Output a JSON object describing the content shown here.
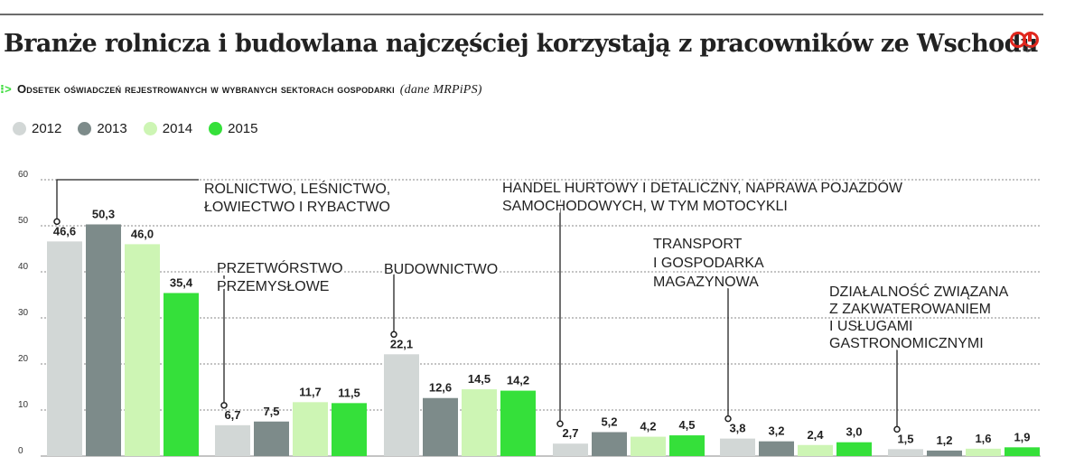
{
  "title": "Branże rolnicza i budowlana najczęściej korzystają z pracowników ze Wschodu",
  "subtitle": {
    "marker": "⁝>",
    "text": "Odsetek oświadczeń rejestrowanych w wybranych sektorach gospodarki",
    "source": "(dane MRPiPS)"
  },
  "logo": {
    "text": "ŁR",
    "color": "#e0261d"
  },
  "colors": {
    "2012": "#d2d7d6",
    "2013": "#7d8b8a",
    "2014": "#cdf5b4",
    "2015": "#35e03a"
  },
  "chart_data": {
    "type": "bar",
    "ylim": [
      0,
      60
    ],
    "yticks": [
      "0",
      "10",
      "20",
      "30",
      "40",
      "50",
      "60"
    ],
    "series_names": [
      "2012",
      "2013",
      "2014",
      "2015"
    ],
    "categories": [
      {
        "name": "ROLNICTWO, LEŚNICTWO, ŁOWIECTWO I RYBACTWO",
        "lines": [
          "ROLNICTWO, LEŚNICTWO,",
          "ŁOWIECTWO I RYBACTWO"
        ],
        "values": [
          46.6,
          50.3,
          46.0,
          35.4
        ],
        "labels": [
          "46,6",
          "50,3",
          "46,0",
          "35,4"
        ]
      },
      {
        "name": "PRZETWÓRSTWO PRZEMYSŁOWE",
        "lines": [
          "PRZETWÓRSTWO",
          "PRZEMYSŁOWE"
        ],
        "values": [
          6.7,
          7.5,
          11.7,
          11.5
        ],
        "labels": [
          "6,7",
          "7,5",
          "11,7",
          "11,5"
        ]
      },
      {
        "name": "BUDOWNICTWO",
        "lines": [
          "BUDOWNICTWO"
        ],
        "values": [
          22.1,
          12.6,
          14.5,
          14.2
        ],
        "labels": [
          "22,1",
          "12,6",
          "14,5",
          "14,2"
        ]
      },
      {
        "name": "HANDEL HURTOWY I DETALICZNY, NAPRAWA POJAZDÓW SAMOCHODOWYCH, W TYM MOTOCYKLI",
        "lines": [
          "HANDEL HURTOWY I DETALICZNY, NAPRAWA POJAZDÓW",
          "SAMOCHODOWYCH, W TYM MOTOCYKLI"
        ],
        "values": [
          2.7,
          5.2,
          4.2,
          4.5
        ],
        "labels": [
          "2,7",
          "5,2",
          "4,2",
          "4,5"
        ]
      },
      {
        "name": "TRANSPORT I GOSPODARKA MAGAZYNOWA",
        "lines": [
          "TRANSPORT",
          "I GOSPODARKA",
          "MAGAZYNOWA"
        ],
        "values": [
          3.8,
          3.2,
          2.4,
          3.0
        ],
        "labels": [
          "3,8",
          "3,2",
          "2,4",
          "3,0"
        ]
      },
      {
        "name": "DZIAŁALNOŚĆ ZWIĄZANA Z ZAKWATEROWANIEM I USŁUGAMI GASTRONOMICZNYMI",
        "lines": [
          "DZIAŁALNOŚĆ ZWIĄZANA",
          "Z ZAKWATEROWANIEM",
          "I USŁUGAMI",
          "GASTRONOMICZNYMI"
        ],
        "values": [
          1.5,
          1.2,
          1.6,
          1.9
        ],
        "labels": [
          "1,5",
          "1,2",
          "1,6",
          "1,9"
        ]
      }
    ]
  }
}
